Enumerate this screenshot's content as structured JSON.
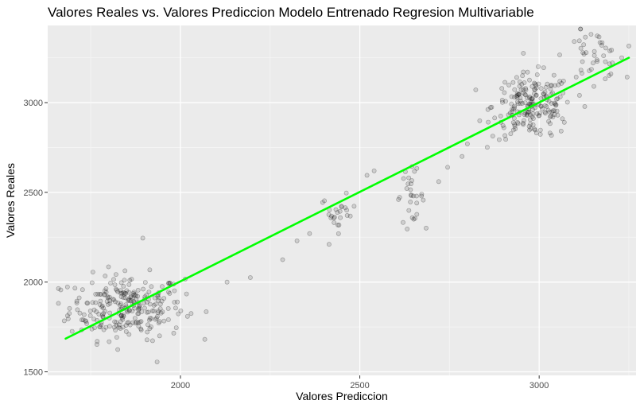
{
  "chart_data": {
    "type": "scatter",
    "title": "Valores Reales vs. Valores Prediccion Modelo Entrenado Regresion Multivariable",
    "xlabel": "Valores Prediccion",
    "ylabel": "Valores Reales",
    "xlim": [
      1630,
      3270
    ],
    "ylim": [
      1480,
      3430
    ],
    "x_ticks": [
      2000,
      2500,
      3000
    ],
    "y_ticks": [
      1500,
      2000,
      2500,
      3000
    ],
    "grid": true,
    "point_color": "#000000",
    "point_opacity": 0.12,
    "line_color": "#00ff00",
    "fit_line": {
      "x": [
        1680,
        3250
      ],
      "y": [
        1685,
        3250
      ]
    },
    "clusters": [
      {
        "cx": 1850,
        "cy": 1860,
        "sx": 80,
        "sy": 90,
        "n": 260
      },
      {
        "cx": 2440,
        "cy": 2380,
        "sx": 25,
        "sy": 50,
        "n": 25
      },
      {
        "cx": 2640,
        "cy": 2480,
        "sx": 20,
        "sy": 70,
        "n": 30
      },
      {
        "cx": 2980,
        "cy": 2980,
        "sx": 55,
        "sy": 90,
        "n": 200
      },
      {
        "cx": 3150,
        "cy": 3260,
        "sx": 40,
        "sy": 70,
        "n": 40
      }
    ],
    "points": [
      {
        "x": 1895,
        "y": 2245
      },
      {
        "x": 1935,
        "y": 1555
      },
      {
        "x": 2285,
        "y": 2125
      },
      {
        "x": 2195,
        "y": 2025
      },
      {
        "x": 2130,
        "y": 2000
      },
      {
        "x": 2325,
        "y": 2230
      },
      {
        "x": 2360,
        "y": 2270
      },
      {
        "x": 2540,
        "y": 2620
      },
      {
        "x": 2520,
        "y": 2595
      },
      {
        "x": 2785,
        "y": 2700
      },
      {
        "x": 2745,
        "y": 2640
      },
      {
        "x": 2720,
        "y": 2560
      },
      {
        "x": 2800,
        "y": 2770
      },
      {
        "x": 3070,
        "y": 2890
      },
      {
        "x": 3115,
        "y": 3410
      },
      {
        "x": 3230,
        "y": 3250
      },
      {
        "x": 3200,
        "y": 3160
      }
    ]
  }
}
